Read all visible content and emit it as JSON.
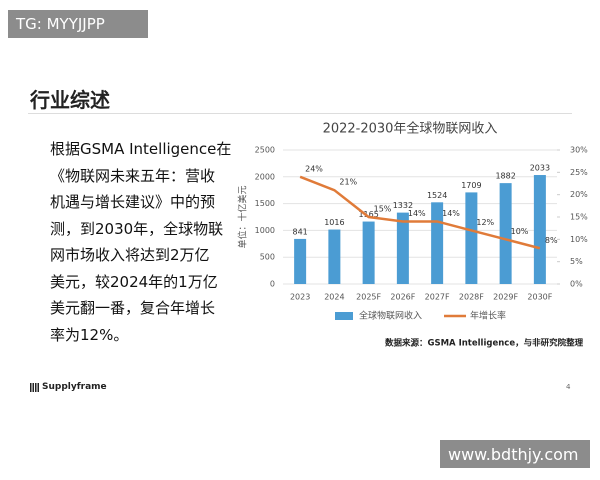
{
  "watermark_top": "TG: MYYJJPP",
  "heading": "行业综述",
  "paragraph": [
    "根据GSMA Intelligence在",
    "《物联网未来五年：营收",
    "机遇与增长建议》中的预",
    "测，到2030年，全球物联",
    "网市场收入将达到2万亿",
    "美元，较2024年的1万亿",
    "美元翻一番，复合年增长",
    "率为12%。"
  ],
  "footer": {
    "logo": "Supplyframe",
    "page": "4"
  },
  "watermark_bottom": "www.bdthjy.com",
  "chart_data": {
    "type": "bar",
    "title": "2022-2030年全球物联网收入",
    "y_label": "单位：十亿美元",
    "source": "数据来源：GSMA Intelligence，与非研究院整理",
    "categories": [
      "2023",
      "2024",
      "2025F",
      "2026F",
      "2027F",
      "2028F",
      "2029F",
      "2030F"
    ],
    "series": [
      {
        "name": "全球物联网收入",
        "color": "#4b9cd3",
        "type": "bar",
        "values": [
          841,
          1016,
          1165,
          1332,
          1524,
          1709,
          1882,
          2033
        ]
      },
      {
        "name": "年增长率",
        "color": "#e07b39",
        "type": "line",
        "axis": "y2",
        "values": [
          24,
          21,
          15,
          14,
          14,
          12,
          10,
          8
        ],
        "value_labels": [
          "24%",
          "21%",
          "15%",
          "14%",
          "14%",
          "12%",
          "10%",
          "8%"
        ]
      }
    ],
    "ylim": [
      0,
      2500
    ],
    "yticks": [
      0,
      500,
      1000,
      1500,
      2000,
      2500
    ],
    "y2lim": [
      0,
      30
    ],
    "y2ticks": [
      {
        "value": 0,
        "label": "0%"
      },
      {
        "value": 5,
        "label": "5%"
      },
      {
        "value": 10,
        "label": "10%"
      },
      {
        "value": 15,
        "label": "15%"
      },
      {
        "value": 20,
        "label": "20%"
      },
      {
        "value": 25,
        "label": "25%"
      },
      {
        "value": 30,
        "label": "30%"
      }
    ],
    "grid": true,
    "legend": "bottom"
  }
}
